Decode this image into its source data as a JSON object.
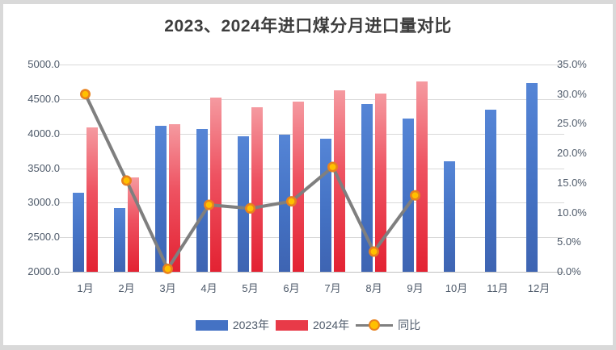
{
  "frame": {
    "outer_background": "#d9d9d9",
    "chart_background": "#ffffff"
  },
  "chart_data": {
    "type": "bar",
    "subtype": "grouped-bars-with-line-overlay",
    "title": "2023、2024年进口煤分月进口量对比",
    "categories": [
      "1月",
      "2月",
      "3月",
      "4月",
      "5月",
      "6月",
      "7月",
      "8月",
      "9月",
      "10月",
      "11月",
      "12月"
    ],
    "series": [
      {
        "name": "2023年",
        "type": "bar",
        "axis": "left",
        "color": "#4472c4",
        "values": [
          3144,
          2917,
          4117,
          4068,
          3958,
          3987,
          3926,
          4433,
          4214,
          3599,
          4351,
          4730
        ]
      },
      {
        "name": "2024年",
        "type": "bar",
        "axis": "left",
        "color": "#e32232",
        "values": [
          4086,
          3366,
          4138,
          4525,
          4382,
          4460,
          4621,
          4584,
          4759,
          null,
          null,
          null
        ]
      },
      {
        "name": "同比",
        "type": "line",
        "axis": "right",
        "line_color": "#7f7f7f",
        "marker_fill": "#ffc000",
        "marker_stroke": "#e8821e",
        "values_percent": [
          30.0,
          15.4,
          0.5,
          11.3,
          10.7,
          11.9,
          17.7,
          3.4,
          12.9,
          null,
          null,
          null
        ]
      }
    ],
    "left_axis": {
      "min": 2000,
      "max": 5000,
      "step": 500,
      "tick_labels": [
        "5000.0",
        "4500.0",
        "4000.0",
        "3500.0",
        "3000.0",
        "2500.0",
        "2000.0"
      ]
    },
    "right_axis": {
      "min": 0,
      "max": 35,
      "step": 5,
      "tick_labels": [
        "35.0%",
        "30.0%",
        "25.0%",
        "20.0%",
        "15.0%",
        "10.0%",
        "5.0%",
        "0.0%"
      ]
    },
    "grid": "horizontal",
    "legend_position": "bottom",
    "legend": [
      {
        "label": "2023年",
        "swatch": "blue-rect"
      },
      {
        "label": "2024年",
        "swatch": "red-rect"
      },
      {
        "label": "同比",
        "swatch": "gray-line-orange-dot"
      }
    ]
  }
}
